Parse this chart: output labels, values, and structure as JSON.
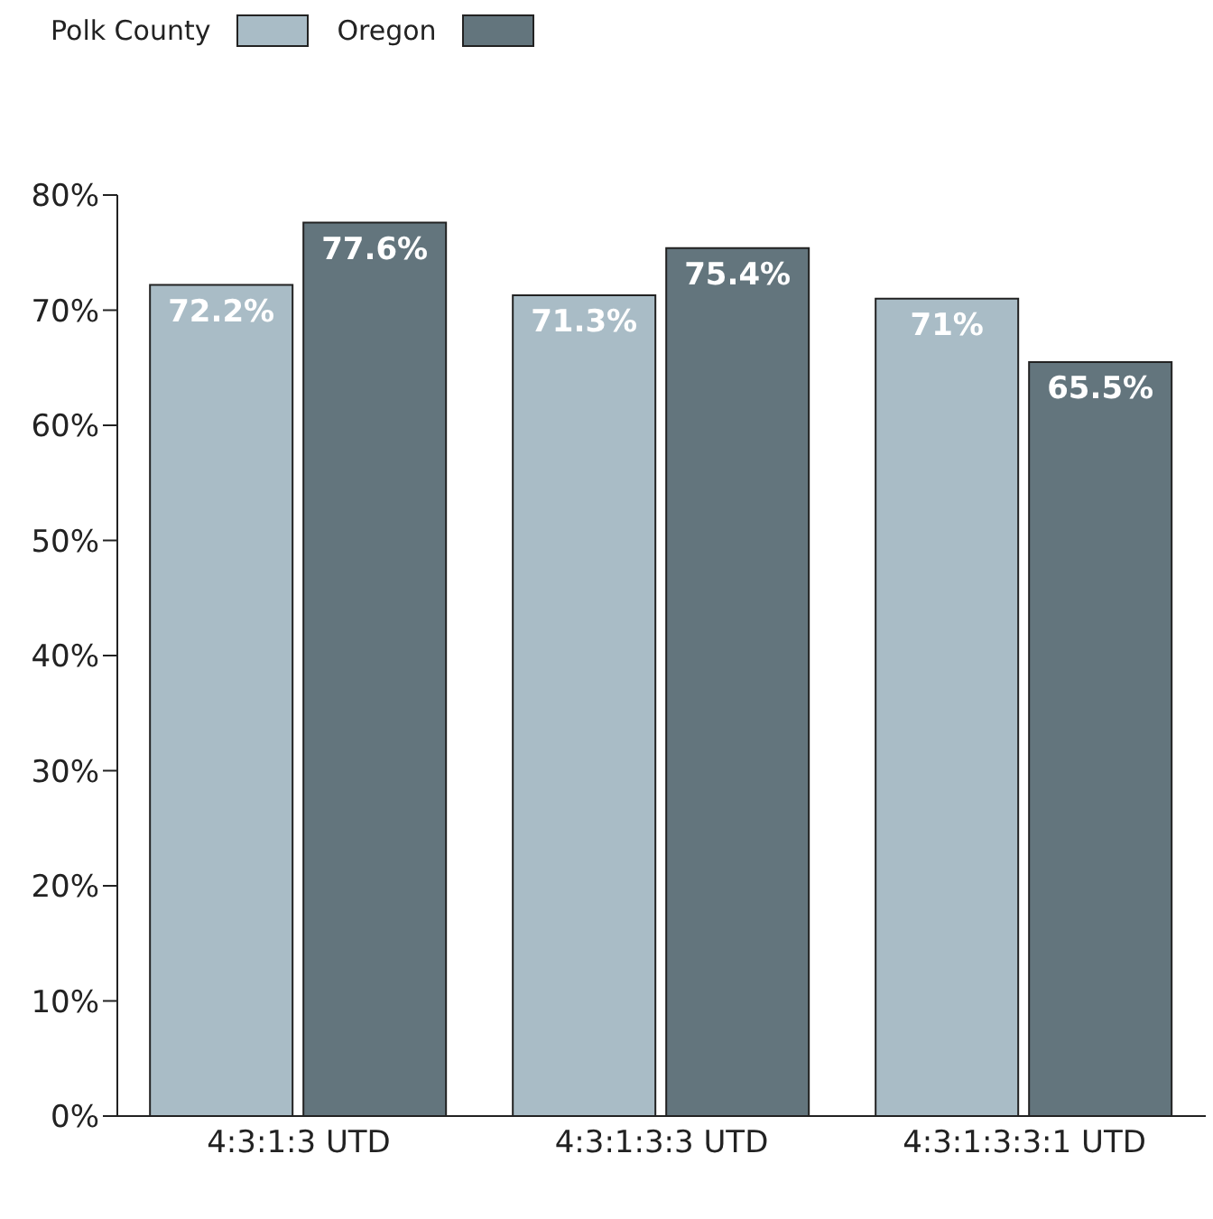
{
  "chart_data": {
    "type": "bar",
    "categories": [
      "4:3:1:3 UTD",
      "4:3:1:3:3 UTD",
      "4:3:1:3:3:1 UTD"
    ],
    "series": [
      {
        "name": "Polk County",
        "color": "#a9bcc6",
        "values": [
          72.2,
          71.3,
          71
        ],
        "value_labels": [
          "72.2%",
          "71.3%",
          "71%"
        ]
      },
      {
        "name": "Oregon",
        "color": "#63757d",
        "values": [
          77.6,
          75.4,
          65.5
        ],
        "value_labels": [
          "77.6%",
          "75.4%",
          "65.5%"
        ]
      }
    ],
    "ylim": [
      0,
      80
    ],
    "yticks": [
      {
        "value": 0,
        "label": "0%"
      },
      {
        "value": 10,
        "label": "10%"
      },
      {
        "value": 20,
        "label": "20%"
      },
      {
        "value": 30,
        "label": "30%"
      },
      {
        "value": 40,
        "label": "40%"
      },
      {
        "value": 50,
        "label": "50%"
      },
      {
        "value": 60,
        "label": "60%"
      },
      {
        "value": 70,
        "label": "70%"
      },
      {
        "value": 80,
        "label": "80%"
      }
    ],
    "legend": "top left",
    "grid": false
  }
}
